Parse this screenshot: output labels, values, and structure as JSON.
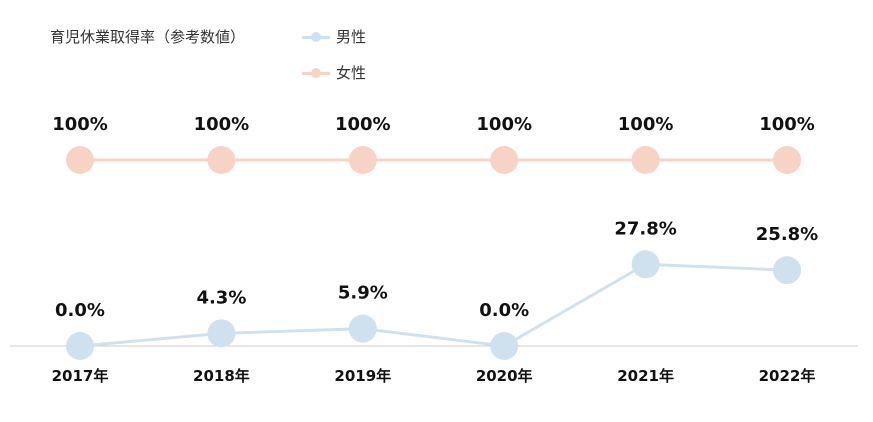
{
  "chart_data": {
    "type": "line",
    "title": "育児休業取得率（参考数値）",
    "categories": [
      "2017年",
      "2018年",
      "2019年",
      "2020年",
      "2021年",
      "2022年"
    ],
    "series": [
      {
        "name": "男性",
        "values": [
          0.0,
          4.3,
          5.9,
          0.0,
          27.8,
          25.8
        ],
        "labels": [
          "0.0%",
          "4.3%",
          "5.9%",
          "0.0%",
          "27.8%",
          "25.8%"
        ],
        "color": "#cfe1ef"
      },
      {
        "name": "女性",
        "values": [
          100,
          100,
          100,
          100,
          100,
          100
        ],
        "labels": [
          "100%",
          "100%",
          "100%",
          "100%",
          "100%",
          "100%"
        ],
        "color": "#f7d3c6"
      }
    ],
    "legend": "top",
    "grid": false
  }
}
